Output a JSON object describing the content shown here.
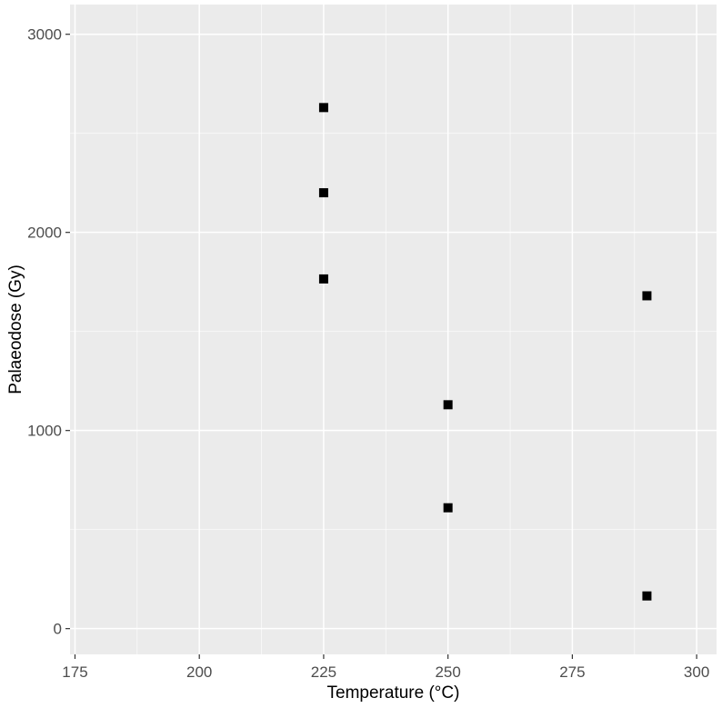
{
  "chart_data": {
    "type": "scatter",
    "title": "",
    "xlabel": "Temperature (°C)",
    "ylabel": "Palaeodose (Gy)",
    "xlim": [
      174,
      304
    ],
    "ylim": [
      -130,
      3150
    ],
    "x_ticks": [
      175,
      200,
      225,
      250,
      275,
      300
    ],
    "y_ticks": [
      0,
      1000,
      2000,
      3000
    ],
    "x_tick_labels": [
      "175",
      "200",
      "225",
      "250",
      "275",
      "300"
    ],
    "y_tick_labels": [
      "0",
      "1000",
      "2000",
      "3000"
    ],
    "grid": true,
    "marker": "square",
    "colors": {
      "panel": "#ebebeb",
      "grid": "#ffffff",
      "point": "#000000",
      "tick_label": "#4d4d4d",
      "tick": "#333333"
    },
    "series": [
      {
        "points": [
          {
            "x": 225,
            "y": 2630
          },
          {
            "x": 225,
            "y": 2200
          },
          {
            "x": 225,
            "y": 1765
          },
          {
            "x": 250,
            "y": 1130
          },
          {
            "x": 250,
            "y": 610
          },
          {
            "x": 290,
            "y": 1680
          },
          {
            "x": 290,
            "y": 165
          }
        ]
      }
    ]
  }
}
